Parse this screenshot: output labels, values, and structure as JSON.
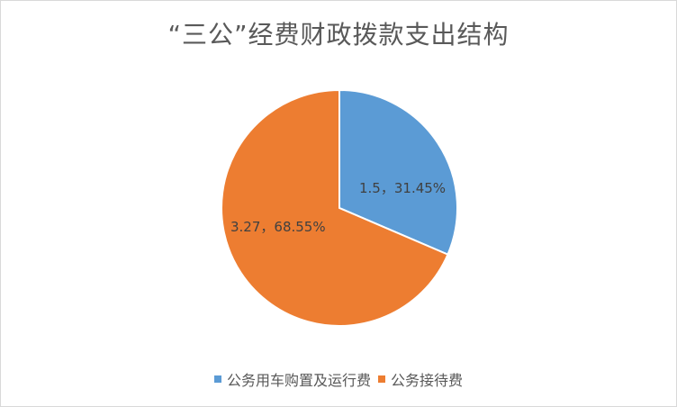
{
  "chart_data": {
    "type": "pie",
    "title": "“三公”经费财政拨款支出结构",
    "categories": [
      "公务用车购置及运行费",
      "公务接待费"
    ],
    "values": [
      1.5,
      3.27
    ],
    "percentages": [
      "31.45%",
      "68.55%"
    ],
    "labels": [
      "1.5，31.45%",
      "3.27，68.55%"
    ],
    "colors": [
      "#5B9BD5",
      "#ED7D31"
    ],
    "legend_position": "bottom"
  }
}
